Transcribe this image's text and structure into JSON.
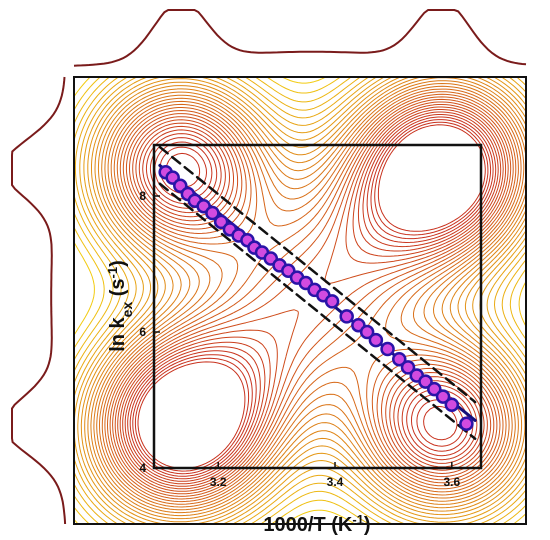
{
  "chart_data": {
    "type": "scatter",
    "title": "",
    "xlabel": {
      "main": "1000/T (K",
      "sup": "-1",
      "close": ")"
    },
    "ylabel": {
      "main": "ln k",
      "sub": "ex",
      "mid": " (s",
      "sup": "-1",
      "close": ")"
    },
    "xlim": [
      3.09,
      3.65
    ],
    "ylim": [
      4.0,
      8.75
    ],
    "xticks": [
      3.2,
      3.4,
      3.6
    ],
    "xtick_labels": [
      "3.2",
      "3.4",
      "3.6"
    ],
    "yticks": [
      4,
      6,
      8
    ],
    "ytick_labels": [
      "4",
      "6",
      "8"
    ],
    "grid": false,
    "legend": "none",
    "series": [
      {
        "kind": "points",
        "x": [
          3.11,
          3.122,
          3.135,
          3.148,
          3.16,
          3.175,
          3.19,
          3.205,
          3.22,
          3.235,
          3.25,
          3.262,
          3.275,
          3.29,
          3.305,
          3.32,
          3.335,
          3.35,
          3.365,
          3.38,
          3.395,
          3.42,
          3.44,
          3.455,
          3.47,
          3.49,
          3.51,
          3.525,
          3.54,
          3.555,
          3.57,
          3.585,
          3.6,
          3.625
        ],
        "y": [
          8.35,
          8.27,
          8.15,
          8.03,
          7.93,
          7.85,
          7.75,
          7.62,
          7.51,
          7.42,
          7.35,
          7.24,
          7.17,
          7.08,
          6.98,
          6.9,
          6.8,
          6.72,
          6.62,
          6.54,
          6.45,
          6.23,
          6.1,
          6.0,
          5.88,
          5.75,
          5.6,
          5.48,
          5.36,
          5.27,
          5.16,
          5.05,
          4.93,
          4.65
        ],
        "fill": "#d24be0",
        "edge": "#2a14a8"
      },
      {
        "kind": "fit",
        "x": [
          3.1,
          3.64
        ],
        "y": [
          8.45,
          4.7
        ],
        "color": "#14107a",
        "style": "solid"
      },
      {
        "kind": "bound",
        "x": [
          3.1,
          3.64
        ],
        "y": [
          8.72,
          4.97
        ],
        "color": "#111111",
        "style": "dashed"
      },
      {
        "kind": "bound",
        "x": [
          3.1,
          3.64
        ],
        "y": [
          8.18,
          4.43
        ],
        "color": "#111111",
        "style": "dashed"
      }
    ],
    "background": {
      "kind": "contour-heatmap",
      "color_low": "#f2cb10",
      "color_high": "#c8321e",
      "peaks": [
        [
          3.135,
          4.62
        ],
        [
          3.135,
          8.42
        ],
        [
          3.585,
          8.42
        ],
        [
          3.585,
          4.62
        ]
      ],
      "marginal_color": "#7a1b1b"
    }
  }
}
